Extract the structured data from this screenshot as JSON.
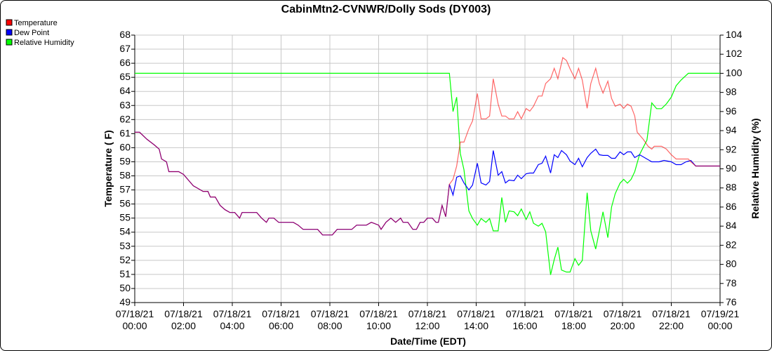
{
  "chart_data": {
    "type": "line",
    "title": "CabinMtn2-CVNWR/Dolly Sods (DY003)",
    "xlabel": "Date/Time (EDT)",
    "ylabel": "Temperature ( F)",
    "y2label": "Relative Humidity (%)",
    "xlim_hours": [
      0,
      24
    ],
    "ylim": [
      49,
      68
    ],
    "y2lim": [
      76,
      104
    ],
    "grid": true,
    "legend_position": "top-left",
    "x_ticks": [
      {
        "h": 0,
        "date": "07/18/21",
        "time": "00:00"
      },
      {
        "h": 2,
        "date": "07/18/21",
        "time": "02:00"
      },
      {
        "h": 4,
        "date": "07/18/21",
        "time": "04:00"
      },
      {
        "h": 6,
        "date": "07/18/21",
        "time": "06:00"
      },
      {
        "h": 8,
        "date": "07/18/21",
        "time": "08:00"
      },
      {
        "h": 10,
        "date": "07/18/21",
        "time": "10:00"
      },
      {
        "h": 12,
        "date": "07/18/21",
        "time": "12:00"
      },
      {
        "h": 14,
        "date": "07/18/21",
        "time": "14:00"
      },
      {
        "h": 16,
        "date": "07/18/21",
        "time": "16:00"
      },
      {
        "h": 18,
        "date": "07/18/21",
        "time": "18:00"
      },
      {
        "h": 20,
        "date": "07/18/21",
        "time": "20:00"
      },
      {
        "h": 22,
        "date": "07/18/21",
        "time": "22:00"
      },
      {
        "h": 24,
        "date": "07/19/21",
        "time": "00:00"
      }
    ],
    "y_ticks": [
      49,
      50,
      51,
      52,
      53,
      54,
      55,
      56,
      57,
      58,
      59,
      60,
      61,
      62,
      63,
      64,
      65,
      66,
      67,
      68
    ],
    "y2_ticks": [
      76,
      78,
      80,
      82,
      84,
      86,
      88,
      90,
      92,
      94,
      96,
      98,
      100,
      102,
      104
    ],
    "series": [
      {
        "name": "Temperature",
        "color": "#ff0000",
        "axis": "left",
        "points": [
          [
            0,
            61.1
          ],
          [
            0.2,
            61.1
          ],
          [
            0.5,
            60.6
          ],
          [
            0.8,
            60.2
          ],
          [
            1.0,
            59.9
          ],
          [
            1.1,
            59.2
          ],
          [
            1.3,
            59.0
          ],
          [
            1.4,
            58.3
          ],
          [
            1.8,
            58.3
          ],
          [
            2.0,
            58.1
          ],
          [
            2.2,
            57.7
          ],
          [
            2.4,
            57.3
          ],
          [
            2.6,
            57.1
          ],
          [
            2.8,
            56.9
          ],
          [
            3.0,
            56.9
          ],
          [
            3.1,
            56.5
          ],
          [
            3.3,
            56.5
          ],
          [
            3.5,
            55.9
          ],
          [
            3.7,
            55.6
          ],
          [
            3.9,
            55.4
          ],
          [
            4.1,
            55.4
          ],
          [
            4.3,
            55.0
          ],
          [
            4.4,
            55.4
          ],
          [
            5.0,
            55.4
          ],
          [
            5.2,
            55.0
          ],
          [
            5.4,
            54.7
          ],
          [
            5.5,
            55.0
          ],
          [
            5.7,
            55.0
          ],
          [
            5.9,
            54.7
          ],
          [
            6.5,
            54.7
          ],
          [
            6.7,
            54.5
          ],
          [
            6.9,
            54.2
          ],
          [
            7.5,
            54.2
          ],
          [
            7.7,
            53.8
          ],
          [
            8.1,
            53.8
          ],
          [
            8.3,
            54.2
          ],
          [
            8.9,
            54.2
          ],
          [
            9.1,
            54.5
          ],
          [
            9.5,
            54.5
          ],
          [
            9.7,
            54.7
          ],
          [
            10.0,
            54.5
          ],
          [
            10.1,
            54.2
          ],
          [
            10.3,
            54.7
          ],
          [
            10.5,
            55.0
          ],
          [
            10.7,
            54.7
          ],
          [
            10.9,
            55.0
          ],
          [
            11.0,
            54.7
          ],
          [
            11.2,
            54.7
          ],
          [
            11.4,
            54.2
          ],
          [
            11.55,
            54.2
          ],
          [
            11.7,
            54.7
          ],
          [
            11.85,
            54.7
          ],
          [
            12.0,
            55.0
          ],
          [
            12.2,
            55.0
          ],
          [
            12.35,
            54.7
          ],
          [
            12.45,
            54.7
          ],
          [
            12.6,
            55.9
          ],
          [
            12.75,
            55.1
          ],
          [
            12.9,
            57.4
          ],
          [
            13.05,
            57.75
          ],
          [
            13.2,
            58.7
          ],
          [
            13.35,
            60.4
          ],
          [
            13.5,
            60.4
          ],
          [
            13.7,
            61.35
          ],
          [
            13.85,
            61.9
          ],
          [
            14.05,
            63.85
          ],
          [
            14.2,
            62.05
          ],
          [
            14.4,
            62.05
          ],
          [
            14.55,
            62.25
          ],
          [
            14.7,
            64.9
          ],
          [
            14.9,
            63.1
          ],
          [
            15.05,
            62.25
          ],
          [
            15.2,
            62.25
          ],
          [
            15.35,
            62.05
          ],
          [
            15.55,
            62.05
          ],
          [
            15.7,
            62.56
          ],
          [
            15.85,
            62.05
          ],
          [
            16.05,
            62.78
          ],
          [
            16.2,
            62.6
          ],
          [
            16.35,
            62.95
          ],
          [
            16.55,
            63.67
          ],
          [
            16.7,
            63.67
          ],
          [
            16.85,
            64.56
          ],
          [
            17.05,
            64.9
          ],
          [
            17.2,
            65.64
          ],
          [
            17.35,
            64.9
          ],
          [
            17.55,
            66.4
          ],
          [
            17.7,
            66.2
          ],
          [
            17.85,
            65.6
          ],
          [
            18.05,
            64.9
          ],
          [
            18.2,
            65.64
          ],
          [
            18.35,
            64.8
          ],
          [
            18.55,
            62.8
          ],
          [
            18.7,
            64.56
          ],
          [
            18.9,
            65.64
          ],
          [
            19.05,
            64.56
          ],
          [
            19.2,
            63.88
          ],
          [
            19.4,
            64.73
          ],
          [
            19.55,
            63.5
          ],
          [
            19.7,
            62.95
          ],
          [
            19.9,
            63.1
          ],
          [
            20.05,
            62.8
          ],
          [
            20.2,
            63.1
          ],
          [
            20.35,
            62.95
          ],
          [
            20.5,
            62.26
          ],
          [
            20.6,
            61.1
          ],
          [
            20.85,
            60.6
          ],
          [
            21.05,
            60.1
          ],
          [
            21.2,
            59.9
          ],
          [
            21.3,
            60.1
          ],
          [
            21.6,
            60.1
          ],
          [
            21.8,
            59.9
          ],
          [
            22.0,
            59.5
          ],
          [
            22.2,
            59.2
          ],
          [
            22.7,
            59.2
          ],
          [
            22.8,
            59.0
          ],
          [
            23.0,
            58.7
          ],
          [
            24.0,
            58.7
          ]
        ]
      },
      {
        "name": "Dew Point",
        "color": "#0000ff",
        "axis": "left",
        "points": [
          [
            12.9,
            57.4
          ],
          [
            13.05,
            56.64
          ],
          [
            13.2,
            57.9
          ],
          [
            13.35,
            58.0
          ],
          [
            13.5,
            57.5
          ],
          [
            13.7,
            57.0
          ],
          [
            13.85,
            57.35
          ],
          [
            14.05,
            58.9
          ],
          [
            14.2,
            57.5
          ],
          [
            14.4,
            57.35
          ],
          [
            14.55,
            57.6
          ],
          [
            14.7,
            59.8
          ],
          [
            14.9,
            58.05
          ],
          [
            15.05,
            58.3
          ],
          [
            15.2,
            57.5
          ],
          [
            15.35,
            57.7
          ],
          [
            15.55,
            57.65
          ],
          [
            15.7,
            58.05
          ],
          [
            15.85,
            57.8
          ],
          [
            16.05,
            58.15
          ],
          [
            16.2,
            58.2
          ],
          [
            16.35,
            58.2
          ],
          [
            16.55,
            58.8
          ],
          [
            16.7,
            58.9
          ],
          [
            16.85,
            59.4
          ],
          [
            17.05,
            58.2
          ],
          [
            17.2,
            59.5
          ],
          [
            17.35,
            59.3
          ],
          [
            17.5,
            59.8
          ],
          [
            17.7,
            59.5
          ],
          [
            17.85,
            59.05
          ],
          [
            18.05,
            58.8
          ],
          [
            18.2,
            59.25
          ],
          [
            18.35,
            58.65
          ],
          [
            18.55,
            59.3
          ],
          [
            18.7,
            59.6
          ],
          [
            18.9,
            59.9
          ],
          [
            19.05,
            59.5
          ],
          [
            19.2,
            59.45
          ],
          [
            19.4,
            59.45
          ],
          [
            19.55,
            59.25
          ],
          [
            19.7,
            59.25
          ],
          [
            19.9,
            59.7
          ],
          [
            20.05,
            59.5
          ],
          [
            20.2,
            59.7
          ],
          [
            20.35,
            59.7
          ],
          [
            20.5,
            59.3
          ],
          [
            20.7,
            59.5
          ],
          [
            21.0,
            59.2
          ],
          [
            21.2,
            59.0
          ],
          [
            21.5,
            59.0
          ],
          [
            21.7,
            59.1
          ],
          [
            22.0,
            59.0
          ],
          [
            22.2,
            58.8
          ],
          [
            22.4,
            58.8
          ],
          [
            22.6,
            59.0
          ],
          [
            22.8,
            59.1
          ],
          [
            23.0,
            58.7
          ],
          [
            24.0,
            58.7
          ]
        ]
      },
      {
        "name": "Relative Humidity",
        "color": "#00ff00",
        "axis": "right",
        "points": [
          [
            0,
            100
          ],
          [
            12.9,
            100
          ],
          [
            13.05,
            96.0
          ],
          [
            13.2,
            97.5
          ],
          [
            13.35,
            91.6
          ],
          [
            13.5,
            89.9
          ],
          [
            13.7,
            85.6
          ],
          [
            13.85,
            84.8
          ],
          [
            14.05,
            84.1
          ],
          [
            14.2,
            84.8
          ],
          [
            14.4,
            84.4
          ],
          [
            14.55,
            84.8
          ],
          [
            14.7,
            83.5
          ],
          [
            14.9,
            83.5
          ],
          [
            15.05,
            87.0
          ],
          [
            15.2,
            84.4
          ],
          [
            15.35,
            85.6
          ],
          [
            15.55,
            85.5
          ],
          [
            15.7,
            85.1
          ],
          [
            15.85,
            85.8
          ],
          [
            16.05,
            84.7
          ],
          [
            16.2,
            85.5
          ],
          [
            16.35,
            84.3
          ],
          [
            16.55,
            84.0
          ],
          [
            16.7,
            84.3
          ],
          [
            16.85,
            83.4
          ],
          [
            17.05,
            78.9
          ],
          [
            17.2,
            80.5
          ],
          [
            17.35,
            81.8
          ],
          [
            17.5,
            79.4
          ],
          [
            17.7,
            79.2
          ],
          [
            17.85,
            79.2
          ],
          [
            18.05,
            80.6
          ],
          [
            18.2,
            79.9
          ],
          [
            18.35,
            80.4
          ],
          [
            18.55,
            87.5
          ],
          [
            18.7,
            83.5
          ],
          [
            18.9,
            81.6
          ],
          [
            19.05,
            83.5
          ],
          [
            19.2,
            85.5
          ],
          [
            19.4,
            82.8
          ],
          [
            19.55,
            86.0
          ],
          [
            19.7,
            87.4
          ],
          [
            19.9,
            88.5
          ],
          [
            20.05,
            88.9
          ],
          [
            20.2,
            88.5
          ],
          [
            20.35,
            88.9
          ],
          [
            20.5,
            89.7
          ],
          [
            20.7,
            91.5
          ],
          [
            21.0,
            93.0
          ],
          [
            21.2,
            96.9
          ],
          [
            21.4,
            96.3
          ],
          [
            21.6,
            96.3
          ],
          [
            21.8,
            96.8
          ],
          [
            22.0,
            97.5
          ],
          [
            22.2,
            98.7
          ],
          [
            22.4,
            99.3
          ],
          [
            22.7,
            100
          ],
          [
            24.0,
            100
          ]
        ]
      }
    ]
  }
}
